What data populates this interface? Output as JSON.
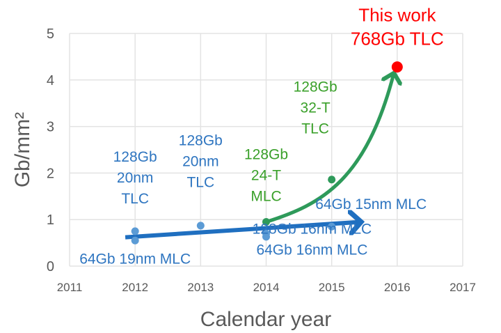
{
  "chart_data": {
    "type": "scatter",
    "xlabel": "Calendar year",
    "ylabel": "Gb/mm²",
    "xlim": [
      2011,
      2017
    ],
    "ylim": [
      0,
      5
    ],
    "xticks": [
      "2011",
      "2012",
      "2013",
      "2014",
      "2015",
      "2016",
      "2017"
    ],
    "yticks": [
      "0",
      "1",
      "2",
      "3",
      "4",
      "5"
    ],
    "grid": true,
    "colors": {
      "blue_points": "#5b9bd5",
      "blue_trend": "#1f6fc0",
      "green": "#2e9a5a",
      "green_text": "#3aa02a",
      "red": "#ff0000",
      "label_blue": "#2e75c0"
    },
    "series": [
      {
        "color": "blue",
        "points": [
          [
            2012,
            0.75
          ],
          [
            2012,
            0.55
          ],
          [
            2013,
            0.87
          ],
          [
            2014,
            0.7
          ],
          [
            2014,
            0.63
          ],
          [
            2015,
            0.85
          ]
        ]
      },
      {
        "color": "green",
        "points": [
          [
            2014,
            0.95
          ],
          [
            2015,
            1.86
          ]
        ]
      },
      {
        "color": "red",
        "points": [
          [
            2016,
            4.28
          ]
        ]
      }
    ],
    "trends": [
      {
        "color": "blue",
        "from": [
          2011.85,
          0.62
        ],
        "to": [
          2015.45,
          0.95
        ]
      },
      {
        "color": "green",
        "from": [
          2014,
          0.95
        ],
        "to": [
          2015.95,
          4.15
        ]
      }
    ],
    "annotations": [
      {
        "lines": [
          "128Gb",
          "20nm",
          "TLC"
        ],
        "color": "blue",
        "at": [
          2012,
          1.35
        ]
      },
      {
        "lines": [
          "64Gb 19nm MLC"
        ],
        "color": "blue",
        "at": [
          2012,
          0.05
        ]
      },
      {
        "lines": [
          "128Gb",
          "20nm",
          "TLC"
        ],
        "color": "blue",
        "at": [
          2013,
          1.7
        ]
      },
      {
        "lines": [
          "128Gb",
          "24-T",
          "MLC"
        ],
        "color": "green",
        "at": [
          2014,
          1.4
        ]
      },
      {
        "lines": [
          "128Gb 16nm MLC",
          "64Gb 16nm MLC"
        ],
        "color": "blue",
        "at": [
          2014.7,
          0.25
        ]
      },
      {
        "lines": [
          "128Gb",
          "32-T",
          "TLC"
        ],
        "color": "green",
        "at": [
          2014.75,
          2.85
        ]
      },
      {
        "lines": [
          "64Gb 15nm MLC"
        ],
        "color": "blue",
        "at": [
          2015.6,
          1.23
        ]
      },
      {
        "lines": [
          "This work",
          "768Gb TLC"
        ],
        "color": "red",
        "at": [
          2016,
          4.75
        ]
      }
    ]
  }
}
